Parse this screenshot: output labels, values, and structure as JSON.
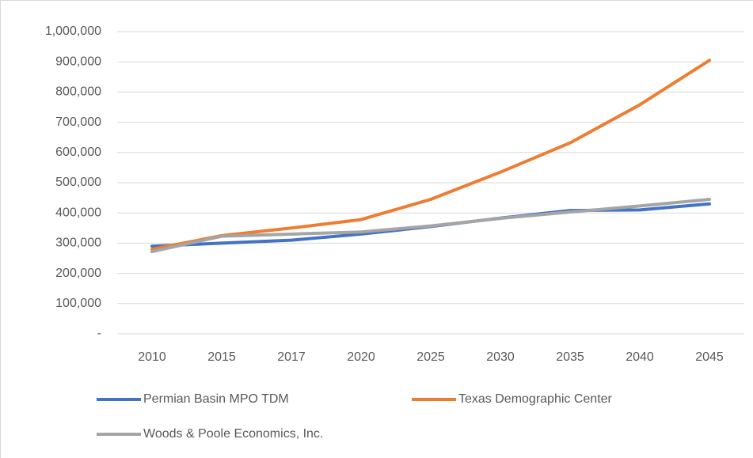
{
  "chart_data": {
    "type": "line",
    "categories": [
      "2010",
      "2015",
      "2017",
      "2020",
      "2025",
      "2030",
      "2035",
      "2040",
      "2045"
    ],
    "series": [
      {
        "name": "Permian Basin MPO TDM",
        "color": "#4472c4",
        "values": [
          290000,
          300000,
          310000,
          330000,
          355000,
          383000,
          408000,
          410000,
          430000
        ]
      },
      {
        "name": "Texas Demographic Center",
        "color": "#ed7d31",
        "values": [
          280000,
          325000,
          350000,
          378000,
          445000,
          535000,
          632000,
          758000,
          905000
        ]
      },
      {
        "name": "Woods & Poole Economics, Inc.",
        "color": "#a5a5a5",
        "values": [
          272000,
          323000,
          330000,
          337000,
          357000,
          382000,
          403000,
          423000,
          445000
        ]
      }
    ],
    "ylim": [
      0,
      1000000
    ],
    "yticks": [
      {
        "value": 0,
        "label": "-"
      },
      {
        "value": 100000,
        "label": "100,000"
      },
      {
        "value": 200000,
        "label": "200,000"
      },
      {
        "value": 300000,
        "label": "300,000"
      },
      {
        "value": 400000,
        "label": "400,000"
      },
      {
        "value": 500000,
        "label": "500,000"
      },
      {
        "value": 600000,
        "label": "600,000"
      },
      {
        "value": 700000,
        "label": "700,000"
      },
      {
        "value": 800000,
        "label": "800,000"
      },
      {
        "value": 900000,
        "label": "900,000"
      },
      {
        "value": 1000000,
        "label": "1,000,000"
      }
    ],
    "grid": true,
    "legend": "bottom"
  }
}
